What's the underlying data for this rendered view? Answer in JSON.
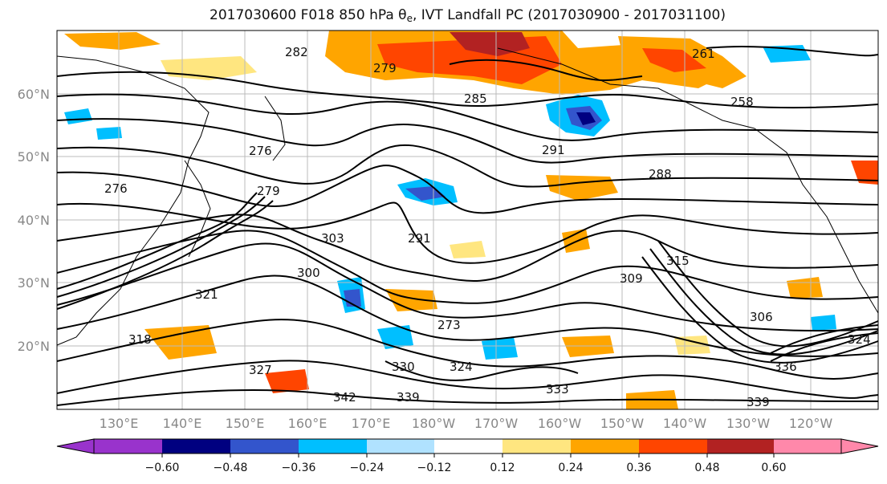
{
  "title": {
    "prefix": "2017030600 F018 850 hPa θ",
    "subscript": "e",
    "suffix": ", IVT Landfall PC (2017030900 - 2017031100)"
  },
  "lat_labels": [
    "60°N",
    "50°N",
    "40°N",
    "30°N",
    "20°N"
  ],
  "lon_labels": [
    "130°E",
    "140°E",
    "150°E",
    "160°E",
    "170°E",
    "180°W",
    "170°W",
    "160°W",
    "150°W",
    "140°W",
    "130°W",
    "120°W"
  ],
  "colorbar": {
    "tick_labels": [
      "−0.60",
      "−0.48",
      "−0.36",
      "−0.24",
      "−0.12",
      "0.12",
      "0.24",
      "0.36",
      "0.48",
      "0.60"
    ],
    "colors": [
      "#9933cc",
      "#000080",
      "#3355cc",
      "#00bfff",
      "#b0e2ff",
      "#ffffff",
      "#ffe680",
      "#ffa500",
      "#ff4500",
      "#b22222",
      "#ff88aa"
    ]
  },
  "contour_labels": [
    {
      "text": "276"
    },
    {
      "text": "279"
    },
    {
      "text": "276"
    },
    {
      "text": "282"
    },
    {
      "text": "279"
    },
    {
      "text": "285"
    },
    {
      "text": "288"
    },
    {
      "text": "291"
    },
    {
      "text": "291"
    },
    {
      "text": "303"
    },
    {
      "text": "300"
    },
    {
      "text": "309"
    },
    {
      "text": "315"
    },
    {
      "text": "306"
    },
    {
      "text": "321"
    },
    {
      "text": "324"
    },
    {
      "text": "330"
    },
    {
      "text": "336"
    },
    {
      "text": "339"
    },
    {
      "text": "342"
    },
    {
      "text": "318"
    },
    {
      "text": "261"
    },
    {
      "text": "258"
    },
    {
      "text": "273"
    },
    {
      "text": "327"
    },
    {
      "text": "333"
    },
    {
      "text": "324"
    },
    {
      "text": "339"
    }
  ]
}
